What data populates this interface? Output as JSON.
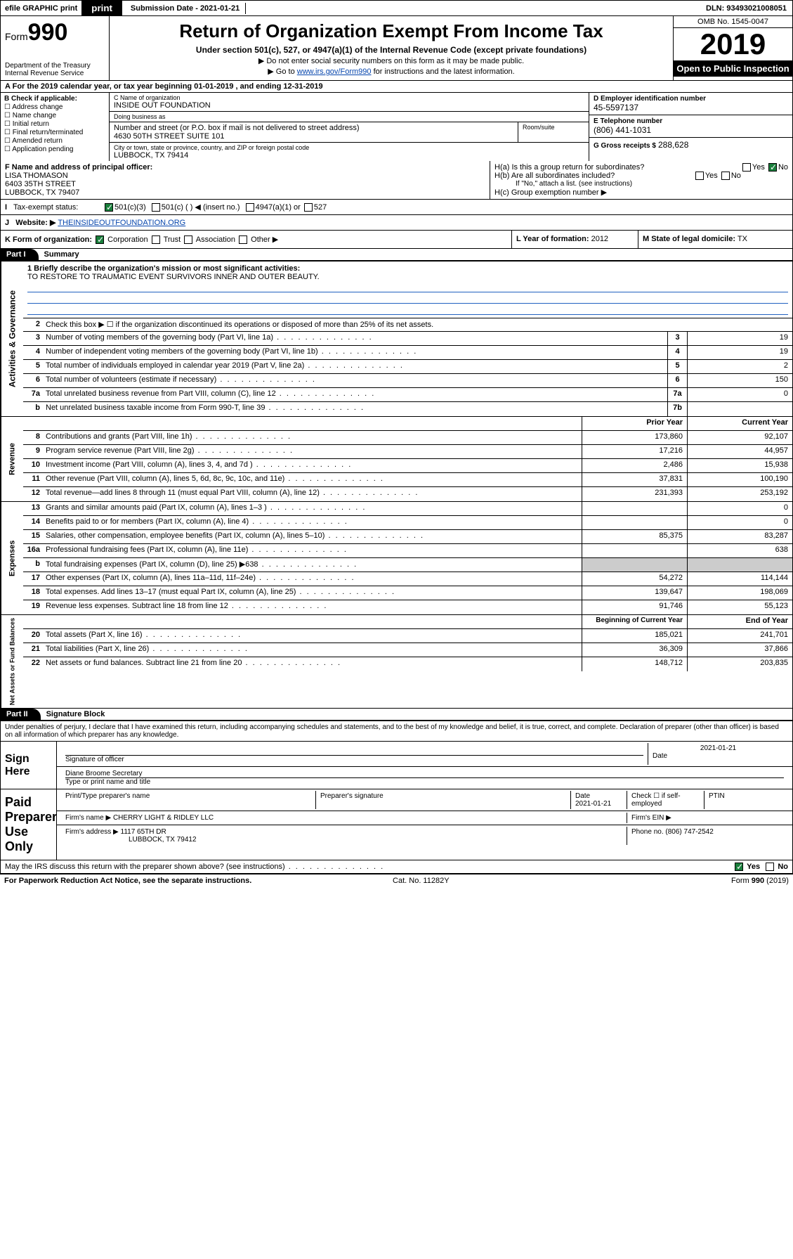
{
  "topbar": {
    "efile": "efile GRAPHIC print",
    "submission": "Submission Date - 2021-01-21",
    "dln": "DLN: 93493021008051"
  },
  "header": {
    "form_prefix": "Form",
    "form_num": "990",
    "title": "Return of Organization Exempt From Income Tax",
    "subtitle": "Under section 501(c), 527, or 4947(a)(1) of the Internal Revenue Code (except private foundations)",
    "note1": "▶ Do not enter social security numbers on this form as it may be made public.",
    "note2_pre": "▶ Go to ",
    "note2_link": "www.irs.gov/Form990",
    "note2_post": " for instructions and the latest information.",
    "dept": "Department of the Treasury\nInternal Revenue Service",
    "omb": "OMB No. 1545-0047",
    "year": "2019",
    "open": "Open to Public Inspection"
  },
  "line_a": "For the 2019 calendar year, or tax year beginning 01-01-2019   , and ending 12-31-2019",
  "box_b": {
    "label": "B Check if applicable:",
    "opts": [
      "Address change",
      "Name change",
      "Initial return",
      "Final return/terminated",
      "Amended return",
      "Application pending"
    ]
  },
  "box_c": {
    "name_lab": "C Name of organization",
    "name": "INSIDE OUT FOUNDATION",
    "dba_lab": "Doing business as",
    "dba": "",
    "addr_lab": "Number and street (or P.O. box if mail is not delivered to street address)",
    "room_lab": "Room/suite",
    "addr": "4630 50TH STREET SUITE 101",
    "city_lab": "City or town, state or province, country, and ZIP or foreign postal code",
    "city": "LUBBOCK, TX  79414"
  },
  "box_d": {
    "ein_lab": "D Employer identification number",
    "ein": "45-5597137",
    "tel_lab": "E Telephone number",
    "tel": "(806) 441-1031",
    "gross_lab": "G Gross receipts $",
    "gross": "288,628"
  },
  "box_f": {
    "lab": "F Name and address of principal officer:",
    "name": "LISA THOMASON",
    "addr1": "6403 35TH STREET",
    "addr2": "LUBBOCK, TX  79407"
  },
  "box_h": {
    "ha": "H(a)  Is this a group return for subordinates?",
    "hb": "H(b)  Are all subordinates included?",
    "hb_note": "If \"No,\" attach a list. (see instructions)",
    "hc": "H(c)  Group exemption number ▶",
    "yes": "Yes",
    "no": "No"
  },
  "row_i": {
    "lab": "Tax-exempt status:",
    "o1": "501(c)(3)",
    "o2": "501(c) (  ) ◀ (insert no.)",
    "o3": "4947(a)(1) or",
    "o4": "527"
  },
  "row_j": {
    "lab": "Website: ▶",
    "val": "THEINSIDEOUTFOUNDATION.ORG"
  },
  "row_k": {
    "left_lab": "K Form of organization:",
    "corp": "Corporation",
    "trust": "Trust",
    "assoc": "Association",
    "other": "Other ▶",
    "l_lab": "L Year of formation:",
    "l_val": "2012",
    "m_lab": "M State of legal domicile:",
    "m_val": "TX"
  },
  "part1": {
    "hdr": "Part I",
    "title": "Summary",
    "mission_lab": "1  Briefly describe the organization's mission or most significant activities:",
    "mission": "TO RESTORE TO TRAUMATIC EVENT SURVIVORS INNER AND OUTER BEAUTY.",
    "line2": "Check this box ▶ ☐  if the organization discontinued its operations or disposed of more than 25% of its net assets.",
    "lines_gov": [
      {
        "n": "3",
        "d": "Number of voting members of the governing body (Part VI, line 1a)",
        "b": "3",
        "v": "19"
      },
      {
        "n": "4",
        "d": "Number of independent voting members of the governing body (Part VI, line 1b)",
        "b": "4",
        "v": "19"
      },
      {
        "n": "5",
        "d": "Total number of individuals employed in calendar year 2019 (Part V, line 2a)",
        "b": "5",
        "v": "2"
      },
      {
        "n": "6",
        "d": "Total number of volunteers (estimate if necessary)",
        "b": "6",
        "v": "150"
      },
      {
        "n": "7a",
        "d": "Total unrelated business revenue from Part VIII, column (C), line 12",
        "b": "7a",
        "v": "0"
      },
      {
        "n": "b",
        "d": "Net unrelated business taxable income from Form 990-T, line 39",
        "b": "7b",
        "v": ""
      }
    ],
    "col_prior": "Prior Year",
    "col_curr": "Current Year",
    "revenue": [
      {
        "n": "8",
        "d": "Contributions and grants (Part VIII, line 1h)",
        "p": "173,860",
        "c": "92,107"
      },
      {
        "n": "9",
        "d": "Program service revenue (Part VIII, line 2g)",
        "p": "17,216",
        "c": "44,957"
      },
      {
        "n": "10",
        "d": "Investment income (Part VIII, column (A), lines 3, 4, and 7d )",
        "p": "2,486",
        "c": "15,938"
      },
      {
        "n": "11",
        "d": "Other revenue (Part VIII, column (A), lines 5, 6d, 8c, 9c, 10c, and 11e)",
        "p": "37,831",
        "c": "100,190"
      },
      {
        "n": "12",
        "d": "Total revenue—add lines 8 through 11 (must equal Part VIII, column (A), line 12)",
        "p": "231,393",
        "c": "253,192"
      }
    ],
    "expenses": [
      {
        "n": "13",
        "d": "Grants and similar amounts paid (Part IX, column (A), lines 1–3 )",
        "p": "",
        "c": "0"
      },
      {
        "n": "14",
        "d": "Benefits paid to or for members (Part IX, column (A), line 4)",
        "p": "",
        "c": "0"
      },
      {
        "n": "15",
        "d": "Salaries, other compensation, employee benefits (Part IX, column (A), lines 5–10)",
        "p": "85,375",
        "c": "83,287"
      },
      {
        "n": "16a",
        "d": "Professional fundraising fees (Part IX, column (A), line 11e)",
        "p": "",
        "c": "638"
      },
      {
        "n": "b",
        "d": "Total fundraising expenses (Part IX, column (D), line 25) ▶638",
        "p": "grey",
        "c": "grey"
      },
      {
        "n": "17",
        "d": "Other expenses (Part IX, column (A), lines 11a–11d, 11f–24e)",
        "p": "54,272",
        "c": "114,144"
      },
      {
        "n": "18",
        "d": "Total expenses. Add lines 13–17 (must equal Part IX, column (A), line 25)",
        "p": "139,647",
        "c": "198,069"
      },
      {
        "n": "19",
        "d": "Revenue less expenses. Subtract line 18 from line 12",
        "p": "91,746",
        "c": "55,123"
      }
    ],
    "col_beg": "Beginning of Current Year",
    "col_end": "End of Year",
    "netassets": [
      {
        "n": "20",
        "d": "Total assets (Part X, line 16)",
        "p": "185,021",
        "c": "241,701"
      },
      {
        "n": "21",
        "d": "Total liabilities (Part X, line 26)",
        "p": "36,309",
        "c": "37,866"
      },
      {
        "n": "22",
        "d": "Net assets or fund balances. Subtract line 21 from line 20",
        "p": "148,712",
        "c": "203,835"
      }
    ],
    "vtab_gov": "Activities & Governance",
    "vtab_rev": "Revenue",
    "vtab_exp": "Expenses",
    "vtab_net": "Net Assets or Fund Balances"
  },
  "part2": {
    "hdr": "Part II",
    "title": "Signature Block",
    "penalties": "Under penalties of perjury, I declare that I have examined this return, including accompanying schedules and statements, and to the best of my knowledge and belief, it is true, correct, and complete. Declaration of preparer (other than officer) is based on all information of which preparer has any knowledge."
  },
  "sign": {
    "here": "Sign Here",
    "sig_lab": "Signature of officer",
    "date": "2021-01-21",
    "date_lab": "Date",
    "name": "Diane Broome  Secretary",
    "name_lab": "Type or print name and title"
  },
  "paid": {
    "label": "Paid Preparer Use Only",
    "col1": "Print/Type preparer's name",
    "col2": "Preparer's signature",
    "col3": "Date",
    "col3v": "2021-01-21",
    "col4": "Check ☐ if self-employed",
    "col5": "PTIN",
    "firm_lab": "Firm's name   ▶",
    "firm": "CHERRY LIGHT & RIDLEY LLC",
    "ein_lab": "Firm's EIN ▶",
    "addr_lab": "Firm's address ▶",
    "addr": "1117 65TH DR",
    "addr2": "LUBBOCK, TX  79412",
    "phone_lab": "Phone no.",
    "phone": "(806) 747-2542"
  },
  "discuss": "May the IRS discuss this return with the preparer shown above? (see instructions)",
  "footer": {
    "left": "For Paperwork Reduction Act Notice, see the separate instructions.",
    "mid": "Cat. No. 11282Y",
    "right": "Form 990 (2019)"
  },
  "colors": {
    "link": "#0645ad",
    "uline": "#2060c0",
    "check_green": "#1a7f3c",
    "grey": "#cccccc"
  }
}
